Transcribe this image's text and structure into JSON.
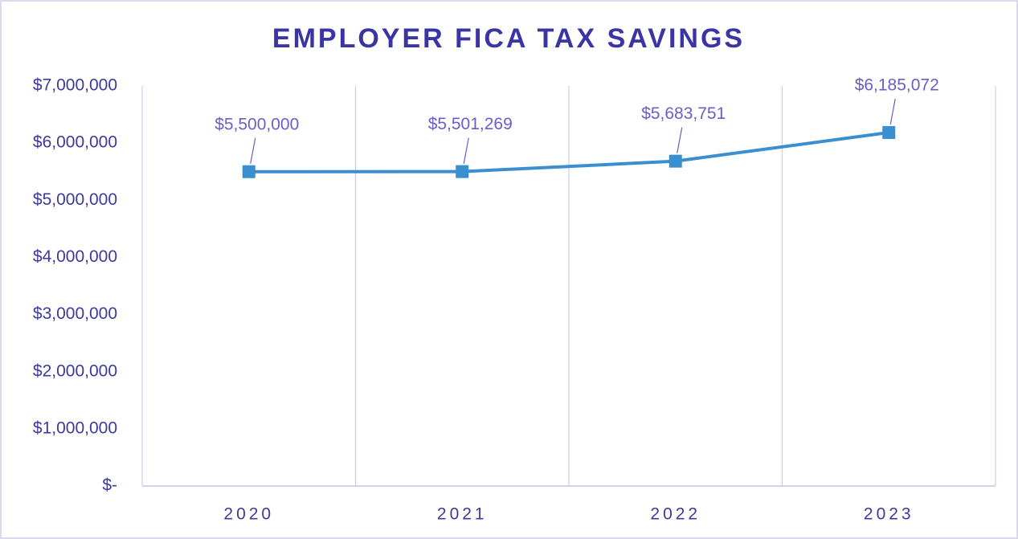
{
  "chart_data": {
    "type": "line",
    "title": "EMPLOYER FICA TAX SAVINGS",
    "categories": [
      "2020",
      "2021",
      "2022",
      "2023"
    ],
    "series": [
      {
        "name": "Employer FICA Tax Savings",
        "color": "#3a8fd0",
        "values": [
          5500000,
          5501269,
          5683751,
          6185072
        ],
        "value_labels": [
          "$5,500,000",
          "$5,501,269",
          "$5,683,751",
          "$6,185,072"
        ]
      }
    ],
    "ylim": [
      0,
      7000000
    ],
    "yticks": [
      {
        "value": 0,
        "label": "$-"
      },
      {
        "value": 1000000,
        "label": "$1,000,000"
      },
      {
        "value": 2000000,
        "label": "$2,000,000"
      },
      {
        "value": 3000000,
        "label": "$3,000,000"
      },
      {
        "value": 4000000,
        "label": "$4,000,000"
      },
      {
        "value": 5000000,
        "label": "$5,000,000"
      },
      {
        "value": 6000000,
        "label": "$6,000,000"
      },
      {
        "value": 7000000,
        "label": "$7,000,000"
      }
    ],
    "grid": "x"
  }
}
